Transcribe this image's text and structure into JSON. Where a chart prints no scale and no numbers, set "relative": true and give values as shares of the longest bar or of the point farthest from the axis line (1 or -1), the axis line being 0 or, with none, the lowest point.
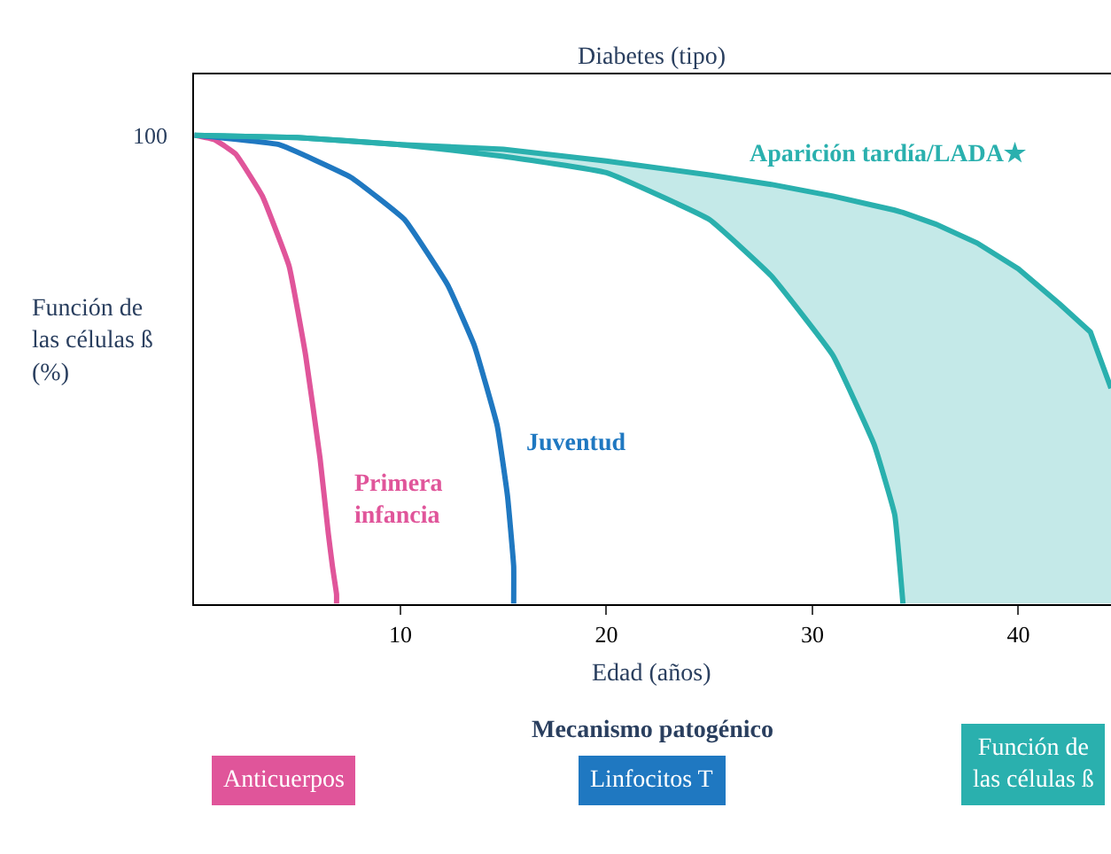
{
  "chart_data": [
    {
      "type": "line",
      "title": "Diabetes (tipo)",
      "xlabel": "Edad (años)",
      "ylabel": "Función de\nlas células ß\n(%)",
      "relative": true,
      "xlim": [
        0,
        44.5
      ],
      "xticks": [
        10,
        20,
        30,
        40
      ],
      "annotations": [
        "100"
      ],
      "series": [
        {
          "name": "Primera infancia",
          "color": "#e0559a",
          "x": [
            0,
            1,
            2,
            3.3,
            4.6,
            5.4,
            6.1,
            6.5,
            6.7,
            6.9,
            6.9
          ],
          "values": [
            1,
            0.99,
            0.96,
            0.87,
            0.72,
            0.53,
            0.31,
            0.15,
            0.08,
            0.02,
            0
          ]
        },
        {
          "name": "Juventud",
          "color": "#1f78c1",
          "x": [
            0,
            4.1,
            7.6,
            10.2,
            12.3,
            13.6,
            14.7,
            15.2,
            15.5,
            15.5
          ],
          "values": [
            1,
            0.98,
            0.91,
            0.82,
            0.68,
            0.55,
            0.38,
            0.23,
            0.08,
            0
          ]
        },
        {
          "color": "#2ab0ae",
          "x": [
            0,
            5,
            10,
            15,
            20,
            25,
            28,
            31,
            33,
            34,
            34.4
          ],
          "values": [
            1,
            0.995,
            0.98,
            0.955,
            0.92,
            0.82,
            0.7,
            0.53,
            0.34,
            0.19,
            0
          ]
        },
        {
          "type": "area",
          "name": "Aparición tardía/LADA★",
          "color": "#2ab0ae",
          "x": [
            0,
            5,
            10,
            15,
            20,
            25,
            28,
            31,
            33,
            34,
            34.4,
            36,
            38,
            40,
            42,
            43.5,
            44.5
          ],
          "values": [
            1,
            0.995,
            0.98,
            0.97,
            0.945,
            0.915,
            0.895,
            0.87,
            0.85,
            0.84,
            0.835,
            0.81,
            0.77,
            0.715,
            0.64,
            0.58,
            0.46
          ]
        }
      ]
    },
    {
      "type": "other",
      "title": "Mecanismo patogénico",
      "annotations": [
        "Anticuerpos",
        "Linfocitos T",
        "Función de\nlas células ß"
      ],
      "colors": [
        "#e0559a",
        "#1f78c1",
        "#2ab0ae"
      ]
    }
  ]
}
